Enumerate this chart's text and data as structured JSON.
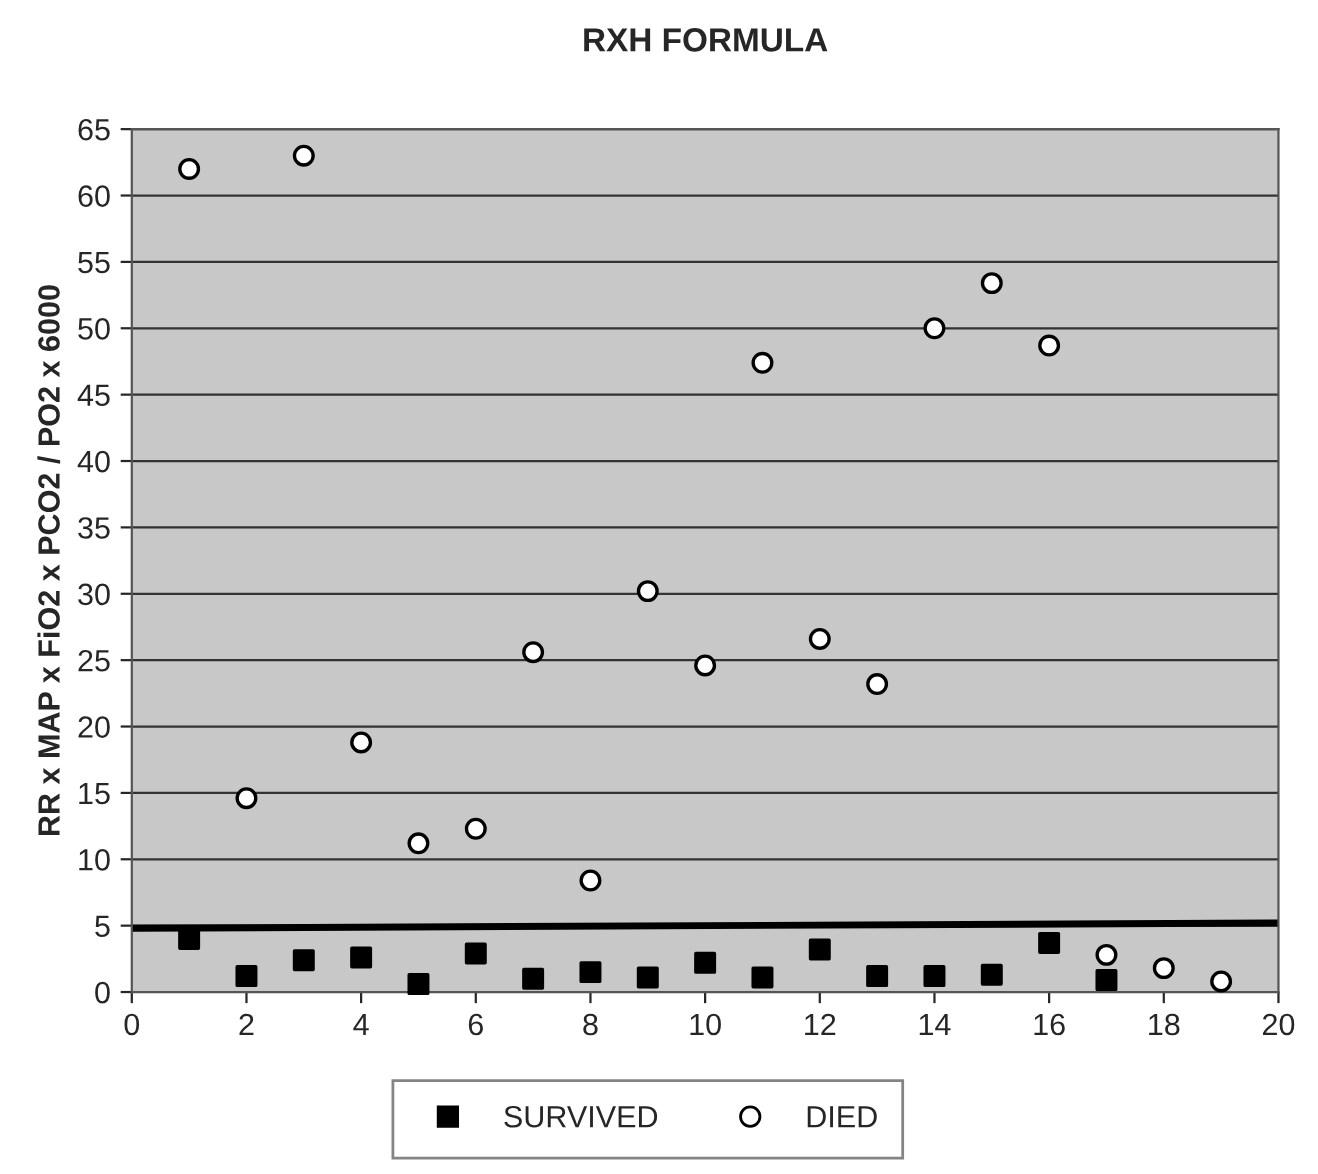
{
  "chart_data": {
    "type": "scatter",
    "title": "RXH FORMULA",
    "ylabel": "RR x MAP x FiO2 x PCO2 / PO2 x 6000",
    "series": [
      {
        "name": "SURVIVED",
        "color": "#000000",
        "marker": "square",
        "x": [
          1,
          2,
          3,
          4,
          5,
          6,
          7,
          8,
          9,
          10,
          11,
          12,
          13,
          14,
          15,
          16,
          17
        ],
        "values": [
          4.0,
          1.2,
          2.4,
          2.6,
          0.6,
          2.9,
          1.0,
          1.5,
          1.1,
          2.2,
          1.1,
          3.2,
          1.2,
          1.2,
          1.3,
          3.7,
          0.9
        ]
      },
      {
        "name": "DIED",
        "color": "#ffffff",
        "marker": "circle",
        "x": [
          1,
          2,
          3,
          4,
          5,
          6,
          7,
          8,
          9,
          10,
          11,
          12,
          13,
          14,
          15,
          16,
          17,
          18,
          19
        ],
        "values": [
          62,
          14.6,
          63,
          18.8,
          11.2,
          12.3,
          25.6,
          8.4,
          30.2,
          24.6,
          47.4,
          26.6,
          23.2,
          50.0,
          53.4,
          48.7,
          2.8,
          1.8,
          0.8
        ]
      },
      {
        "type": "line",
        "color": "#000000",
        "x": [
          0,
          20
        ],
        "values": [
          4.8,
          5.2
        ]
      }
    ],
    "xlim": [
      0,
      20
    ],
    "xticks": [
      0,
      2,
      4,
      6,
      8,
      10,
      12,
      14,
      16,
      18,
      20
    ],
    "ylim": [
      0,
      65
    ],
    "yticks": [
      0,
      5,
      10,
      15,
      20,
      25,
      30,
      35,
      40,
      45,
      50,
      55,
      60,
      65
    ],
    "grid": "y",
    "legend": "bottom"
  }
}
